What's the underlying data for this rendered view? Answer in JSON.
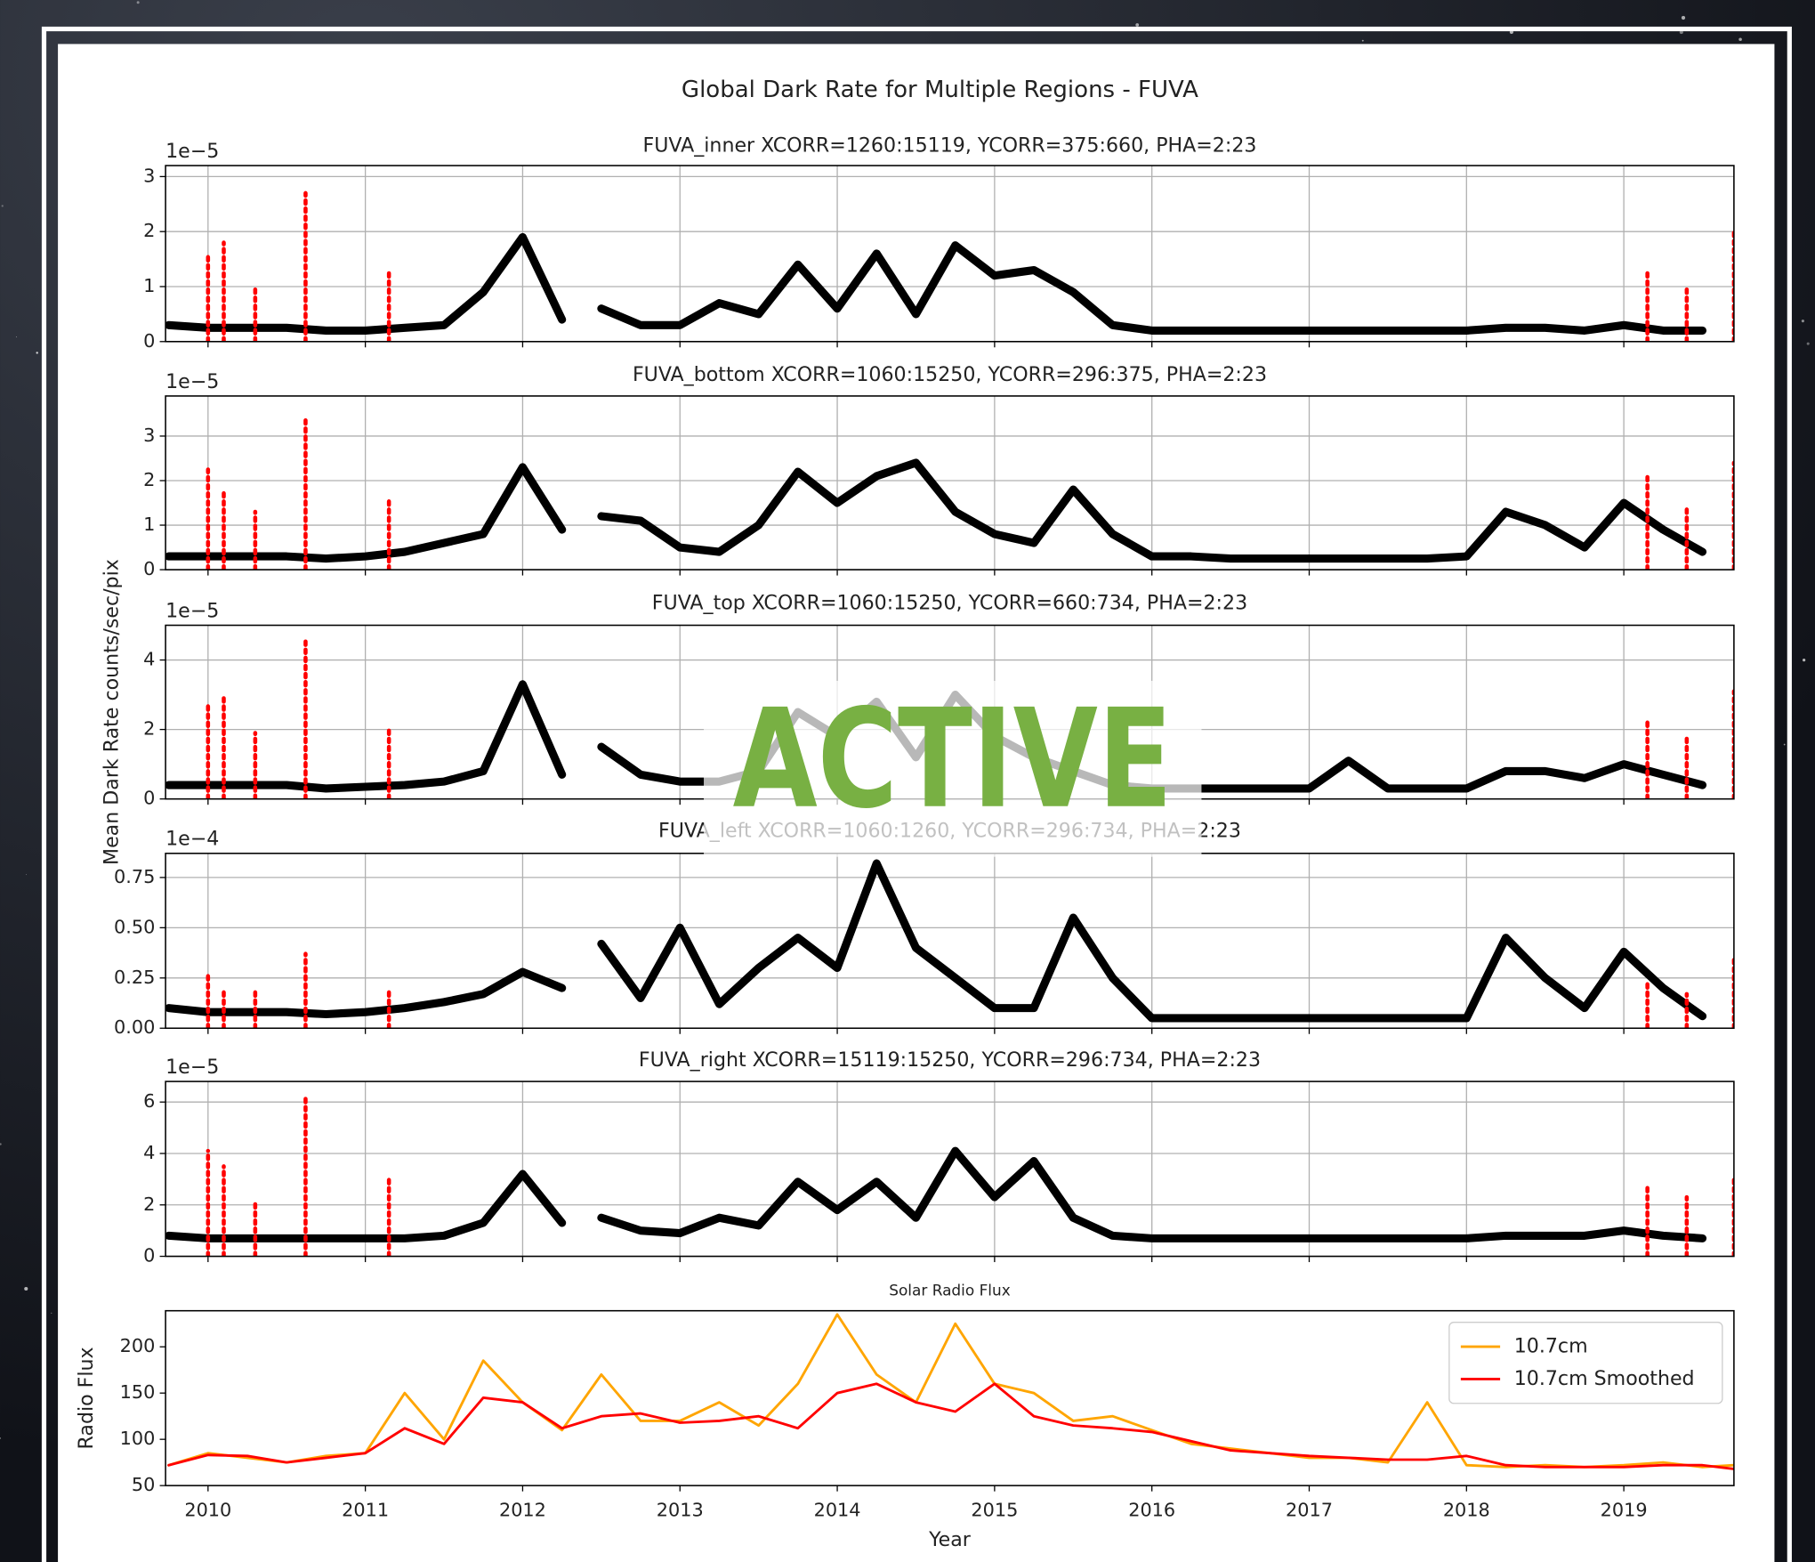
{
  "figure": {
    "title": "Global Dark Rate for Multiple Regions - FUVA",
    "ylabel": "Mean Dark Rate counts/sec/pix"
  },
  "overlay": {
    "label": "ACTIVE"
  },
  "chart_data": [
    {
      "type": "scatter",
      "title": "FUVA_inner XCORR=1260:15119, YCORR=375:660, PHA=2:23",
      "offset_label": "1e−5",
      "xlim": [
        2009.73,
        2019.7
      ],
      "xticks": [
        2010,
        2011,
        2012,
        2013,
        2014,
        2015,
        2016,
        2017,
        2018,
        2019
      ],
      "show_xtick_labels": false,
      "ylim": [
        0,
        3.2
      ],
      "yticks": [
        0,
        1,
        2,
        3
      ],
      "grid": true,
      "series": [
        {
          "color": "#000000",
          "kind": "band",
          "x": [
            2009.75,
            2010,
            2010.25,
            2010.5,
            2010.75,
            2011,
            2011.25,
            2011.5,
            2011.75,
            2012,
            2012.25,
            2012.375,
            2012.5,
            2012.75,
            2013,
            2013.25,
            2013.5,
            2013.75,
            2014,
            2014.25,
            2014.5,
            2014.75,
            2015,
            2015.25,
            2015.5,
            2015.75,
            2016,
            2016.25,
            2016.5,
            2016.75,
            2017,
            2017.25,
            2017.5,
            2017.75,
            2018,
            2018.25,
            2018.5,
            2018.75,
            2019,
            2019.25,
            2019.5
          ],
          "values": [
            0.3,
            0.25,
            0.25,
            0.25,
            0.2,
            0.2,
            0.25,
            0.3,
            0.9,
            1.9,
            0.4,
            null,
            0.6,
            0.3,
            0.3,
            0.7,
            0.5,
            1.4,
            0.6,
            1.6,
            0.5,
            1.75,
            1.2,
            1.3,
            0.9,
            0.3,
            0.2,
            0.2,
            0.2,
            0.2,
            0.2,
            0.2,
            0.2,
            0.2,
            0.2,
            0.25,
            0.25,
            0.2,
            0.3,
            0.2,
            0.2
          ]
        },
        {
          "color": "#ff0000",
          "kind": "spike",
          "x": [
            2010.0,
            2010.1,
            2010.3,
            2010.62,
            2011.15,
            2019.15,
            2019.4,
            2019.7
          ],
          "values": [
            1.55,
            1.8,
            0.95,
            2.7,
            1.25,
            1.3,
            1.0,
            2.05
          ]
        }
      ]
    },
    {
      "type": "scatter",
      "title": "FUVA_bottom XCORR=1060:15250, YCORR=296:375, PHA=2:23",
      "offset_label": "1e−5",
      "xlim": [
        2009.73,
        2019.7
      ],
      "xticks": [
        2010,
        2011,
        2012,
        2013,
        2014,
        2015,
        2016,
        2017,
        2018,
        2019
      ],
      "show_xtick_labels": false,
      "ylim": [
        0,
        3.9
      ],
      "yticks": [
        0,
        1,
        2,
        3
      ],
      "grid": true,
      "series": [
        {
          "color": "#000000",
          "kind": "band",
          "x": [
            2009.75,
            2010,
            2010.25,
            2010.5,
            2010.75,
            2011,
            2011.25,
            2011.5,
            2011.75,
            2012,
            2012.25,
            2012.375,
            2012.5,
            2012.75,
            2013,
            2013.25,
            2013.5,
            2013.75,
            2014,
            2014.25,
            2014.5,
            2014.75,
            2015,
            2015.25,
            2015.5,
            2015.75,
            2016,
            2016.25,
            2016.5,
            2016.75,
            2017,
            2017.25,
            2017.5,
            2017.75,
            2018,
            2018.25,
            2018.5,
            2018.75,
            2019,
            2019.25,
            2019.5
          ],
          "values": [
            0.3,
            0.3,
            0.3,
            0.3,
            0.25,
            0.3,
            0.4,
            0.6,
            0.8,
            2.3,
            0.9,
            null,
            1.2,
            1.1,
            0.5,
            0.4,
            1.0,
            2.2,
            1.5,
            2.1,
            2.4,
            1.3,
            0.8,
            0.6,
            1.8,
            0.8,
            0.3,
            0.3,
            0.25,
            0.25,
            0.25,
            0.25,
            0.25,
            0.25,
            0.3,
            1.3,
            1.0,
            0.5,
            1.5,
            0.9,
            0.4
          ]
        },
        {
          "color": "#ff0000",
          "kind": "spike",
          "x": [
            2010.0,
            2010.1,
            2010.3,
            2010.62,
            2011.15,
            2019.15,
            2019.4,
            2019.7
          ],
          "values": [
            2.25,
            1.8,
            1.3,
            3.4,
            1.55,
            2.15,
            1.4,
            2.4
          ]
        }
      ]
    },
    {
      "type": "scatter",
      "title": "FUVA_top XCORR=1060:15250, YCORR=660:734, PHA=2:23",
      "offset_label": "1e−5",
      "xlim": [
        2009.73,
        2019.7
      ],
      "xticks": [
        2010,
        2011,
        2012,
        2013,
        2014,
        2015,
        2016,
        2017,
        2018,
        2019
      ],
      "show_xtick_labels": false,
      "ylim": [
        0,
        5
      ],
      "yticks": [
        0,
        2,
        4
      ],
      "grid": true,
      "series": [
        {
          "color": "#000000",
          "kind": "band",
          "x": [
            2009.75,
            2010,
            2010.25,
            2010.5,
            2010.75,
            2011,
            2011.25,
            2011.5,
            2011.75,
            2012,
            2012.25,
            2012.375,
            2012.5,
            2012.75,
            2013,
            2013.25,
            2013.5,
            2013.75,
            2014,
            2014.25,
            2014.5,
            2014.75,
            2015,
            2015.25,
            2015.5,
            2015.75,
            2016,
            2016.25,
            2016.5,
            2016.75,
            2017,
            2017.25,
            2017.5,
            2017.75,
            2018,
            2018.25,
            2018.5,
            2018.75,
            2019,
            2019.25,
            2019.5
          ],
          "values": [
            0.4,
            0.4,
            0.4,
            0.4,
            0.3,
            0.35,
            0.4,
            0.5,
            0.8,
            3.3,
            0.7,
            null,
            1.5,
            0.7,
            0.5,
            0.5,
            0.8,
            2.5,
            1.8,
            2.8,
            1.2,
            3.0,
            1.8,
            1.2,
            0.8,
            0.4,
            0.3,
            0.3,
            0.3,
            0.3,
            0.3,
            1.1,
            0.3,
            0.3,
            0.3,
            0.8,
            0.8,
            0.6,
            1.0,
            0.7,
            0.4
          ]
        },
        {
          "color": "#ff0000",
          "kind": "spike",
          "x": [
            2010.0,
            2010.1,
            2010.3,
            2010.62,
            2011.15,
            2019.15,
            2019.4,
            2019.7
          ],
          "values": [
            2.7,
            3.0,
            1.9,
            4.55,
            2.0,
            2.3,
            1.8,
            3.1
          ]
        }
      ]
    },
    {
      "type": "scatter",
      "title": "FUVA_left XCORR=1060:1260, YCORR=296:734, PHA=2:23",
      "offset_label": "1e−4",
      "xlim": [
        2009.73,
        2019.7
      ],
      "xticks": [
        2010,
        2011,
        2012,
        2013,
        2014,
        2015,
        2016,
        2017,
        2018,
        2019
      ],
      "show_xtick_labels": false,
      "ylim": [
        0,
        0.87
      ],
      "yticks": [
        {
          "value": 0,
          "label": "0.00"
        },
        {
          "value": 0.25,
          "label": "0.25"
        },
        {
          "value": 0.5,
          "label": "0.50"
        },
        {
          "value": 0.75,
          "label": "0.75"
        }
      ],
      "grid": true,
      "series": [
        {
          "color": "#000000",
          "kind": "band",
          "x": [
            2009.75,
            2010,
            2010.25,
            2010.5,
            2010.75,
            2011,
            2011.25,
            2011.5,
            2011.75,
            2012,
            2012.25,
            2012.375,
            2012.5,
            2012.75,
            2013,
            2013.25,
            2013.5,
            2013.75,
            2014,
            2014.25,
            2014.5,
            2014.75,
            2015,
            2015.25,
            2015.5,
            2015.75,
            2016,
            2016.25,
            2016.5,
            2016.75,
            2017,
            2017.25,
            2017.5,
            2017.75,
            2018,
            2018.25,
            2018.5,
            2018.75,
            2019,
            2019.25,
            2019.5
          ],
          "values": [
            0.1,
            0.08,
            0.08,
            0.08,
            0.07,
            0.08,
            0.1,
            0.13,
            0.17,
            0.28,
            0.2,
            null,
            0.42,
            0.15,
            0.5,
            0.12,
            0.3,
            0.45,
            0.3,
            0.82,
            0.4,
            0.25,
            0.1,
            0.1,
            0.55,
            0.25,
            0.05,
            0.05,
            0.05,
            0.05,
            0.05,
            0.05,
            0.05,
            0.05,
            0.05,
            0.45,
            0.25,
            0.1,
            0.38,
            0.2,
            0.06
          ]
        },
        {
          "color": "#ff0000",
          "kind": "spike",
          "x": [
            2010.0,
            2010.1,
            2010.3,
            2010.62,
            2011.15,
            2019.15,
            2019.4,
            2019.7
          ],
          "values": [
            0.28,
            0.2,
            0.2,
            0.37,
            0.18,
            0.22,
            0.17,
            0.34
          ]
        }
      ]
    },
    {
      "type": "scatter",
      "title": "FUVA_right XCORR=15119:15250, YCORR=296:734, PHA=2:23",
      "offset_label": "1e−5",
      "xlim": [
        2009.73,
        2019.7
      ],
      "xticks": [
        2010,
        2011,
        2012,
        2013,
        2014,
        2015,
        2016,
        2017,
        2018,
        2019
      ],
      "show_xtick_labels": false,
      "ylim": [
        0,
        6.8
      ],
      "yticks": [
        0,
        2,
        4,
        6
      ],
      "grid": true,
      "series": [
        {
          "color": "#000000",
          "kind": "band",
          "x": [
            2009.75,
            2010,
            2010.25,
            2010.5,
            2010.75,
            2011,
            2011.25,
            2011.5,
            2011.75,
            2012,
            2012.25,
            2012.375,
            2012.5,
            2012.75,
            2013,
            2013.25,
            2013.5,
            2013.75,
            2014,
            2014.25,
            2014.5,
            2014.75,
            2015,
            2015.25,
            2015.5,
            2015.75,
            2016,
            2016.25,
            2016.5,
            2016.75,
            2017,
            2017.25,
            2017.5,
            2017.75,
            2018,
            2018.25,
            2018.5,
            2018.75,
            2019,
            2019.25,
            2019.5
          ],
          "values": [
            0.8,
            0.7,
            0.7,
            0.7,
            0.7,
            0.7,
            0.7,
            0.8,
            1.3,
            3.2,
            1.3,
            null,
            1.5,
            1.0,
            0.9,
            1.5,
            1.2,
            2.9,
            1.8,
            2.9,
            1.5,
            4.1,
            2.3,
            3.7,
            1.5,
            0.8,
            0.7,
            0.7,
            0.7,
            0.7,
            0.7,
            0.7,
            0.7,
            0.7,
            0.7,
            0.8,
            0.8,
            0.8,
            1.0,
            0.8,
            0.7
          ]
        },
        {
          "color": "#ff0000",
          "kind": "spike",
          "x": [
            2010.0,
            2010.1,
            2010.3,
            2010.62,
            2011.15,
            2019.15,
            2019.4,
            2019.7
          ],
          "values": [
            4.1,
            3.5,
            2.1,
            6.3,
            3.0,
            2.8,
            2.3,
            3.0
          ]
        }
      ]
    },
    {
      "type": "line",
      "title": "Solar Radio Flux",
      "xlabel": "Year",
      "ylabel": "Radio Flux",
      "xlim": [
        2009.73,
        2019.7
      ],
      "xticks": [
        2010,
        2011,
        2012,
        2013,
        2014,
        2015,
        2016,
        2017,
        2018,
        2019
      ],
      "show_xtick_labels": true,
      "ylim": [
        50,
        239
      ],
      "yticks": [
        50,
        100,
        150,
        200
      ],
      "grid": false,
      "legend": "upper right",
      "series": [
        {
          "name": "10.7cm",
          "color": "#ffa500",
          "kind": "line",
          "x": [
            2009.75,
            2010,
            2010.25,
            2010.5,
            2010.75,
            2011,
            2011.25,
            2011.5,
            2011.75,
            2012,
            2012.25,
            2012.5,
            2012.75,
            2013,
            2013.25,
            2013.5,
            2013.75,
            2014,
            2014.25,
            2014.5,
            2014.75,
            2015,
            2015.25,
            2015.5,
            2015.75,
            2016,
            2016.25,
            2016.5,
            2016.75,
            2017,
            2017.25,
            2017.5,
            2017.75,
            2018,
            2018.25,
            2018.5,
            2018.75,
            2019,
            2019.25,
            2019.5,
            2019.7
          ],
          "values": [
            72,
            85,
            80,
            75,
            82,
            85,
            150,
            100,
            185,
            140,
            110,
            170,
            120,
            120,
            140,
            115,
            160,
            235,
            170,
            140,
            225,
            160,
            150,
            120,
            125,
            110,
            95,
            90,
            85,
            80,
            80,
            75,
            140,
            72,
            70,
            72,
            70,
            72,
            75,
            70,
            72
          ]
        },
        {
          "name": "10.7cm Smoothed",
          "color": "#ff0000",
          "kind": "line",
          "x": [
            2009.75,
            2010,
            2010.25,
            2010.5,
            2010.75,
            2011,
            2011.25,
            2011.5,
            2011.75,
            2012,
            2012.25,
            2012.5,
            2012.75,
            2013,
            2013.25,
            2013.5,
            2013.75,
            2014,
            2014.25,
            2014.5,
            2014.75,
            2015,
            2015.25,
            2015.5,
            2015.75,
            2016,
            2016.25,
            2016.5,
            2016.75,
            2017,
            2017.25,
            2017.5,
            2017.75,
            2018,
            2018.25,
            2018.5,
            2018.75,
            2019,
            2019.25,
            2019.5,
            2019.7
          ],
          "values": [
            72,
            83,
            82,
            75,
            80,
            85,
            112,
            95,
            145,
            140,
            112,
            125,
            128,
            118,
            120,
            125,
            112,
            150,
            160,
            140,
            130,
            160,
            125,
            115,
            112,
            108,
            98,
            88,
            85,
            82,
            80,
            78,
            78,
            82,
            72,
            70,
            70,
            70,
            72,
            72,
            68
          ]
        }
      ]
    }
  ]
}
